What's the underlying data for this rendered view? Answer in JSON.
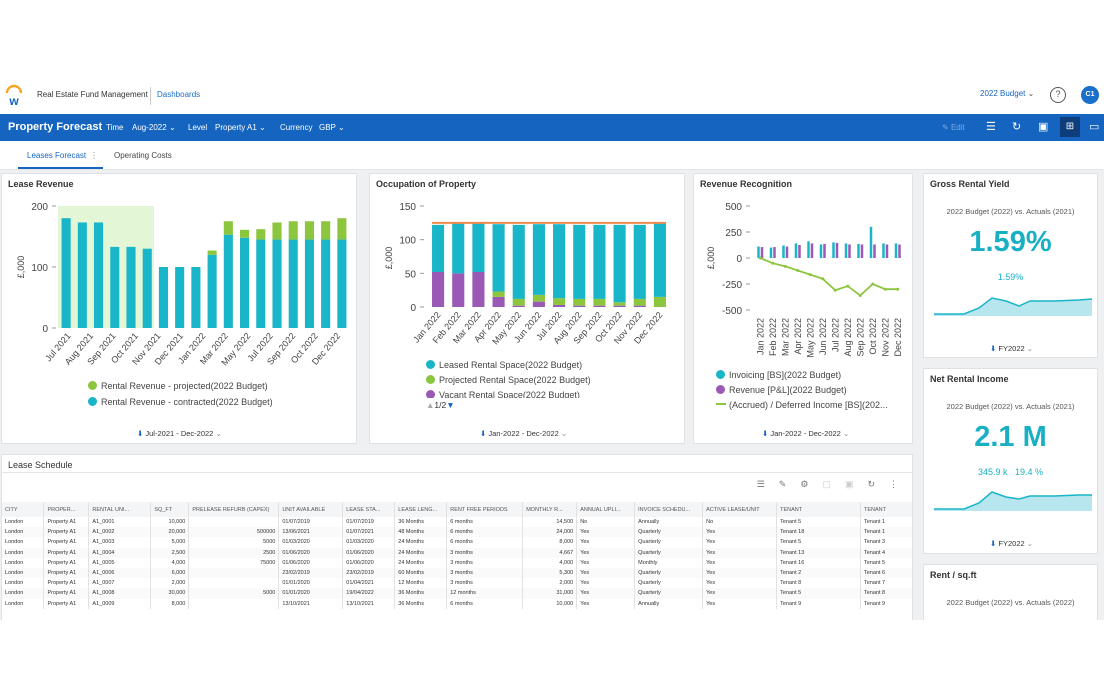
{
  "header": {
    "app_name": "Real Estate Fund Management",
    "breadcrumb": "Dashboards",
    "budget_selector": "2022 Budget",
    "help": "?",
    "avatar_initials": "C1"
  },
  "toolbar": {
    "page_title": "Property Forecast",
    "filters": [
      {
        "label": "Time",
        "value": "Aug-2022"
      },
      {
        "label": "Level",
        "value": "Property A1"
      },
      {
        "label": "Currency",
        "value": "GBP"
      }
    ],
    "edit_label": "Edit"
  },
  "tabs": [
    {
      "label": "Leases Forecast"
    },
    {
      "label": "Operating Costs"
    }
  ],
  "lease_revenue": {
    "title": "Lease Revenue",
    "footer": "Jul-2021 - Dec-2022",
    "legend": [
      "Rental Revenue - projected(2022 Budget)",
      "Rental Revenue - contracted(2022 Budget)"
    ]
  },
  "occupation": {
    "title": "Occupation of Property",
    "footer": "Jan-2022 - Dec-2022",
    "legend": [
      "Leased Rental Space(2022 Budget)",
      "Projected Rental Space(2022 Budget)",
      "Vacant Rental Space(2022 Budget)"
    ],
    "pager": "1/2"
  },
  "revenue_recognition": {
    "title": "Revenue Recognition",
    "footer": "Jan-2022 - Dec-2022",
    "legend": [
      "Invoicing [BS](2022 Budget)",
      "Revenue [P&L](2022 Budget)",
      "(Accrued) / Deferred Income [BS](202..."
    ]
  },
  "gross_rental_yield": {
    "title": "Gross Rental Yield",
    "subtitle": "2022 Budget (2022) vs. Actuals (2021)",
    "value": "1.59%",
    "small": "1.59%",
    "footer": "FY2022"
  },
  "net_rental_income": {
    "title": "Net Rental Income",
    "subtitle": "2022 Budget (2022) vs. Actuals (2021)",
    "value": "2.1 M",
    "small_a": "345.9 k",
    "small_b": "19.4 %",
    "footer": "FY2022"
  },
  "rent_sqft": {
    "title": "Rent / sq.ft",
    "subtitle": "2022 Budget (2022) vs. Actuals (2022)"
  },
  "lease_schedule": {
    "title": "Lease Schedule",
    "columns": [
      "CITY",
      "PROPER...",
      "RENTAL UNI...",
      "SQ_FT",
      "PRELEASE REFURB (CAPEX)",
      "UNIT AVAILABLE",
      "LEASE STA...",
      "LEASE LENG...",
      "RENT FREE PERIODS",
      "MONTHLY R...",
      "ANNUAL UPLI...",
      "INVOICE SCHEDU...",
      "ACTIVE LEASE/UNIT",
      "TENANT",
      "TENANT"
    ],
    "rows": [
      [
        "London",
        "Property A1",
        "A1_0001",
        "10,000",
        "",
        "01/07/2019",
        "01/07/2019",
        "36 Months",
        "6 months",
        "14,500",
        "No",
        "Annually",
        "No",
        "Tenant 5",
        "Tenant 1"
      ],
      [
        "London",
        "Property A1",
        "A1_0002",
        "20,000",
        "500000",
        "13/06/2021",
        "01/07/2021",
        "48 Months",
        "6 months",
        "24,000",
        "Yes",
        "Quarterly",
        "Yes",
        "Tenant 18",
        "Tenant 1"
      ],
      [
        "London",
        "Property A1",
        "A1_0003",
        "5,000",
        "5000",
        "01/03/2020",
        "01/03/2020",
        "24 Months",
        "6 months",
        "8,000",
        "Yes",
        "Quarterly",
        "Yes",
        "Tenant 5",
        "Tenant 3"
      ],
      [
        "London",
        "Property A1",
        "A1_0004",
        "2,500",
        "2500",
        "01/06/2020",
        "01/06/2020",
        "24 Months",
        "3 months",
        "4,667",
        "Yes",
        "Quarterly",
        "Yes",
        "Tenant 13",
        "Tenant 4"
      ],
      [
        "London",
        "Property A1",
        "A1_0005",
        "4,000",
        "75000",
        "01/06/2020",
        "01/06/2020",
        "24 Months",
        "3 months",
        "4,000",
        "Yes",
        "Monthly",
        "Yes",
        "Tenant 16",
        "Tenant 5"
      ],
      [
        "London",
        "Property A1",
        "A1_0006",
        "6,000",
        "",
        "23/02/2019",
        "23/02/2019",
        "60 Months",
        "3 months",
        "5,300",
        "Yes",
        "Quarterly",
        "Yes",
        "Tenant 2",
        "Tenant 6"
      ],
      [
        "London",
        "Property A1",
        "A1_0007",
        "2,000",
        "",
        "01/01/2020",
        "01/04/2021",
        "12 Months",
        "3 months",
        "2,000",
        "Yes",
        "Quarterly",
        "Yes",
        "Tenant 8",
        "Tenant 7"
      ],
      [
        "London",
        "Property A1",
        "A1_0008",
        "30,000",
        "5000",
        "01/01/2020",
        "19/04/2022",
        "36 Months",
        "12 months",
        "31,000",
        "Yes",
        "Quarterly",
        "Yes",
        "Tenant 5",
        "Tenant 8"
      ],
      [
        "London",
        "Property A1",
        "A1_0009",
        "8,000",
        "",
        "13/10/2021",
        "13/10/2021",
        "36 Months",
        "6 months",
        "10,000",
        "Yes",
        "Annually",
        "Yes",
        "Tenant 9",
        "Tenant 9"
      ]
    ]
  },
  "colors": {
    "teal": "#19b5c8",
    "green": "#8cc63f",
    "purple": "#9b59b6",
    "orange": "#f08a4b",
    "blue": "#1565c0"
  },
  "chart_data": [
    {
      "type": "bar",
      "title": "Lease Revenue",
      "ylabel": "£,000",
      "ylim": [
        0,
        200
      ],
      "yticks": [
        0,
        100,
        200
      ],
      "categories": [
        "Jul 2021",
        "Aug 2021",
        "Sep 2021",
        "Oct 2021",
        "Nov 2021",
        "Dec 2021",
        "Jan 2022",
        "Feb 2022",
        "Mar 2022",
        "Apr 2022",
        "May 2022",
        "Jun 2022",
        "Jul 2022",
        "Aug 2022",
        "Sep 2022",
        "Oct 2022",
        "Nov 2022",
        "Dec 2022"
      ],
      "xtick_labels": [
        "Jul 2021",
        "Aug 2021",
        "Sep 2021",
        "Oct 2021",
        "Nov 2021",
        "Dec 2021",
        "Jan 2022",
        "Mar 2022",
        "May 2022",
        "Jul 2022",
        "Sep 2022",
        "Oct 2022",
        "Dec 2022"
      ],
      "series": [
        {
          "name": "Rental Revenue - contracted(2022 Budget)",
          "values": [
            180,
            173,
            173,
            133,
            133,
            130,
            100,
            100,
            100,
            120,
            153,
            148,
            145,
            145,
            145,
            145,
            145,
            145
          ]
        },
        {
          "name": "Rental Revenue - projected(2022 Budget)",
          "values": [
            0,
            0,
            0,
            0,
            0,
            0,
            0,
            0,
            0,
            7,
            22,
            13,
            17,
            28,
            30,
            30,
            30,
            35
          ]
        }
      ]
    },
    {
      "type": "bar",
      "title": "Occupation of Property",
      "ylabel": "£,000",
      "ylim": [
        0,
        150
      ],
      "yticks": [
        0,
        50,
        100,
        150
      ],
      "categories": [
        "Jan 2022",
        "Feb 2022",
        "Mar 2022",
        "Apr 2022",
        "May 2022",
        "Jun 2022",
        "Jul 2022",
        "Aug 2022",
        "Sep 2022",
        "Oct 2022",
        "Nov 2022",
        "Dec 2022"
      ],
      "series": [
        {
          "name": "Leased Rental Space(2022 Budget)",
          "values": [
            70,
            75,
            72,
            100,
            110,
            105,
            110,
            110,
            110,
            115,
            110,
            110
          ]
        },
        {
          "name": "Projected Rental Space(2022 Budget)",
          "values": [
            0,
            0,
            0,
            8,
            10,
            10,
            10,
            10,
            10,
            5,
            10,
            15
          ]
        },
        {
          "name": "Vacant Rental Space(2022 Budget)",
          "values": [
            52,
            50,
            52,
            15,
            2,
            8,
            3,
            2,
            2,
            2,
            2,
            0
          ]
        },
        {
          "name": "Total",
          "type": "line",
          "values": [
            125,
            125,
            125,
            125,
            125,
            125,
            125,
            125,
            125,
            125,
            125,
            125
          ]
        }
      ]
    },
    {
      "type": "bar",
      "title": "Revenue Recognition",
      "ylabel": "£,000",
      "ylim": [
        -500,
        500
      ],
      "yticks": [
        -500,
        -250,
        0,
        250,
        500
      ],
      "categories": [
        "Jan 2022",
        "Feb 2022",
        "Mar 2022",
        "Apr 2022",
        "May 2022",
        "Jun 2022",
        "Jul 2022",
        "Aug 2022",
        "Sep 2022",
        "Oct 2022",
        "Nov 2022",
        "Dec 2022"
      ],
      "series": [
        {
          "name": "Invoicing [BS](2022 Budget)",
          "values": [
            110,
            100,
            120,
            140,
            160,
            130,
            150,
            140,
            135,
            300,
            140,
            140
          ]
        },
        {
          "name": "Revenue [P&L](2022 Budget)",
          "values": [
            105,
            105,
            110,
            125,
            140,
            135,
            145,
            130,
            130,
            130,
            130,
            130
          ]
        },
        {
          "name": "(Accrued) / Deferred Income [BS](2022 Budget)",
          "type": "line",
          "values": [
            0,
            -50,
            -80,
            -120,
            -160,
            -200,
            -310,
            -270,
            -360,
            -250,
            -300,
            -300
          ]
        }
      ]
    }
  ]
}
